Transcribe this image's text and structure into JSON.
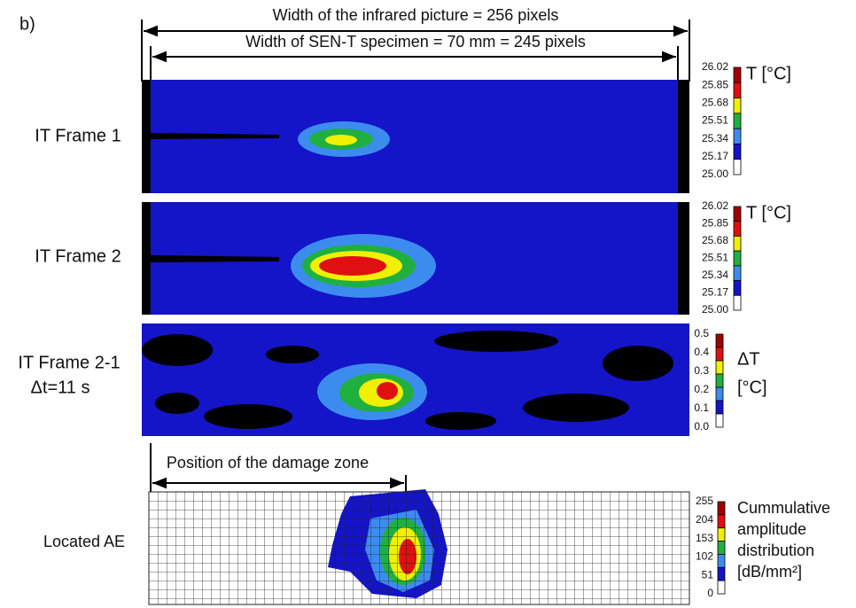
{
  "label": "b)",
  "dimensions": {
    "picture_width": "Width of the infrared picture = 256 pixels",
    "specimen_width": "Width of SEN-T specimen = 70 mm = 245 pixels"
  },
  "frames": [
    {
      "label": [
        "IT Frame 1"
      ],
      "colorbar": {
        "ticks": [
          "26.02",
          "25.85",
          "25.68",
          "25.51",
          "25.34",
          "25.17",
          "25.00"
        ],
        "title": [
          "T [°C]"
        ]
      }
    },
    {
      "label": [
        "IT Frame 2"
      ],
      "colorbar": {
        "ticks": [
          "26.02",
          "25.85",
          "25.68",
          "25.51",
          "25.34",
          "25.17",
          "25.00"
        ],
        "title": [
          "T [°C]"
        ]
      }
    },
    {
      "label": [
        "IT Frame 2-1",
        "Δt=11 s"
      ],
      "colorbar": {
        "ticks": [
          "0.5",
          "0.4",
          "0.3",
          "0.2",
          "0.1",
          "0.0"
        ],
        "title": [
          "ΔT",
          "[°C]"
        ]
      }
    }
  ],
  "damage_zone": "Position of the damage zone",
  "ae": {
    "label": "Located AE",
    "colorbar": {
      "ticks": [
        "255",
        "204",
        "153",
        "102",
        "51",
        "0"
      ],
      "title": [
        "Cummulative",
        "amplitude",
        "distribution",
        "[dB/mm²]"
      ]
    }
  }
}
